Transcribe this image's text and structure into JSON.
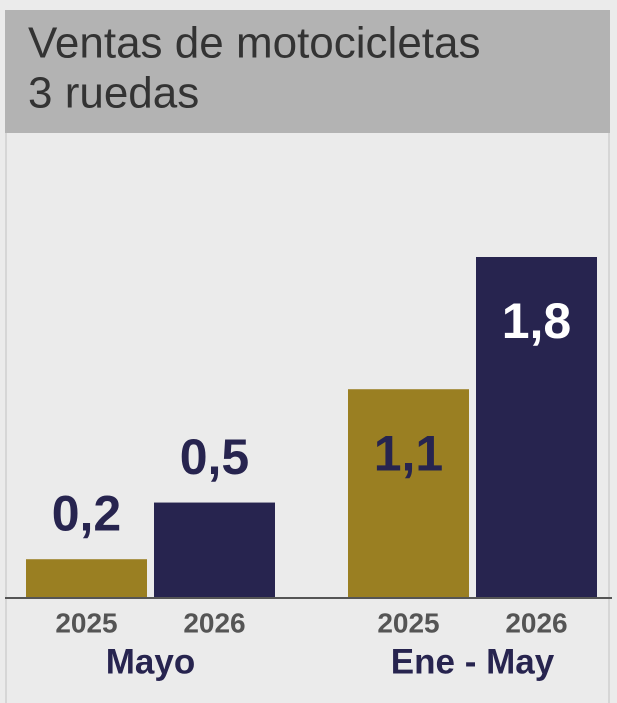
{
  "chart_data": {
    "type": "bar",
    "title": [
      "Ventas de motocicletas",
      "3 ruedas"
    ],
    "categories": [
      "Mayo",
      "Ene - May"
    ],
    "series": [
      {
        "name": "2025",
        "color": "#9a7f22",
        "values": [
          0.2,
          1.1
        ],
        "value_labels": [
          "0,2",
          "1,1"
        ]
      },
      {
        "name": "2026",
        "color": "#27244f",
        "values": [
          0.5,
          1.8
        ],
        "value_labels": [
          "0,5",
          "1,8"
        ]
      }
    ]
  }
}
